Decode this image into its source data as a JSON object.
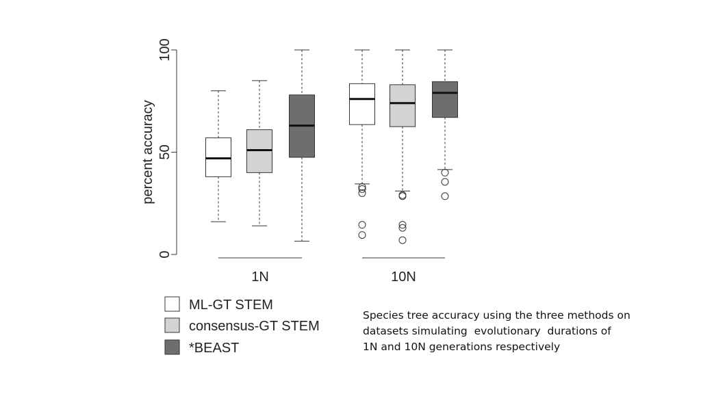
{
  "chart_data": {
    "type": "boxplot",
    "ylabel": "percent accuracy",
    "ylim": [
      0,
      100
    ],
    "y_ticks": [
      "0",
      "50",
      "100"
    ],
    "groups": [
      "1N",
      "10N"
    ],
    "series": [
      {
        "name": "ML-GT STEM",
        "color": "#ffffff"
      },
      {
        "name": "consensus-GT STEM",
        "color": "#d3d3d3"
      },
      {
        "name": "*BEAST",
        "color": "#6e6e6e"
      }
    ],
    "boxes": [
      {
        "group": "1N",
        "series": "ML-GT STEM",
        "whisker_low": 16,
        "q1": 38,
        "median": 47,
        "q3": 57,
        "whisker_high": 80,
        "outliers": []
      },
      {
        "group": "1N",
        "series": "consensus-GT STEM",
        "whisker_low": 14,
        "q1": 40,
        "median": 51,
        "q3": 61,
        "whisker_high": 85,
        "outliers": []
      },
      {
        "group": "1N",
        "series": "*BEAST",
        "whisker_low": 6.5,
        "q1": 47.5,
        "median": 63,
        "q3": 78,
        "whisker_high": 100,
        "outliers": []
      },
      {
        "group": "10N",
        "series": "ML-GT STEM",
        "whisker_low": 34.5,
        "q1": 63.5,
        "median": 76,
        "q3": 83.5,
        "whisker_high": 100,
        "outliers": [
          33,
          32,
          30,
          14.5,
          9.5
        ]
      },
      {
        "group": "10N",
        "series": "consensus-GT STEM",
        "whisker_low": 31,
        "q1": 62.5,
        "median": 74,
        "q3": 83,
        "whisker_high": 100,
        "outliers": [
          29,
          28.5,
          14.5,
          13,
          7
        ]
      },
      {
        "group": "10N",
        "series": "*BEAST",
        "whisker_low": 41.5,
        "q1": 67,
        "median": 79,
        "q3": 84.5,
        "whisker_high": 100,
        "outliers": [
          40,
          35.5,
          28.5
        ]
      }
    ],
    "legend": {
      "position": "bottom-left"
    }
  },
  "caption": {
    "lines": [
      "Species tree accuracy using the three methods on",
      "datasets simulating  evolutionary  durations of",
      "1N and 10N generations respectively"
    ]
  }
}
